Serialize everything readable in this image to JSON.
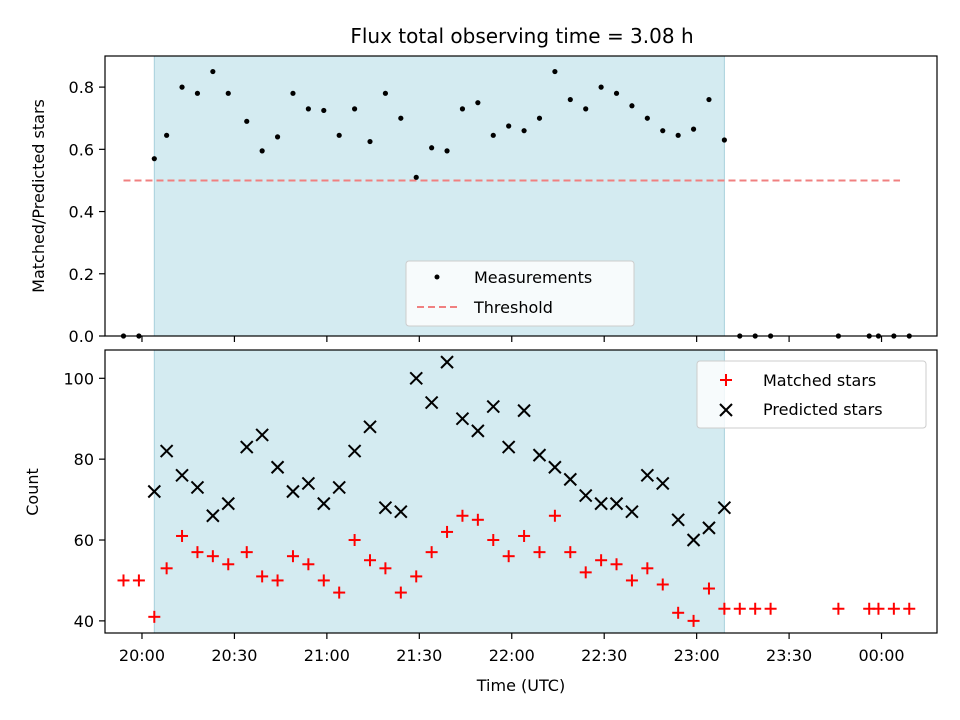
{
  "chart_data": [
    {
      "type": "scatter",
      "title": "Flux total observing time = 3.08 h",
      "xlabel": "",
      "ylabel": "Matched/Predicted stars",
      "ylim": [
        0,
        0.9
      ],
      "yticks": [
        "0.0",
        "0.2",
        "0.4",
        "0.6",
        "0.8"
      ],
      "ytick_values": [
        0,
        0.2,
        0.4,
        0.6,
        0.8
      ],
      "xlim": [
        "19:48",
        "00:18"
      ],
      "shaded_region": {
        "start": "20:04",
        "end": "23:09",
        "color": "#d4ebf1"
      },
      "threshold": {
        "name": "Threshold",
        "value": 0.5,
        "x_range": [
          "19:54",
          "00:06"
        ],
        "color": "#f08080"
      },
      "legend": {
        "placement": "lower center",
        "entries": [
          "Measurements",
          "Threshold"
        ]
      },
      "series": [
        {
          "name": "Measurements",
          "color": "#000000",
          "x": [
            "19:54",
            "19:59",
            "20:04",
            "20:08",
            "20:13",
            "20:18",
            "20:23",
            "20:28",
            "20:34",
            "20:39",
            "20:44",
            "20:49",
            "20:54",
            "20:59",
            "21:04",
            "21:09",
            "21:14",
            "21:19",
            "21:24",
            "21:29",
            "21:34",
            "21:39",
            "21:44",
            "21:49",
            "21:54",
            "21:59",
            "22:04",
            "22:09",
            "22:14",
            "22:19",
            "22:24",
            "22:29",
            "22:34",
            "22:39",
            "22:44",
            "22:49",
            "22:54",
            "22:59",
            "23:04",
            "23:09",
            "23:14",
            "23:19",
            "23:24",
            "23:46",
            "23:56",
            "23:59",
            "00:04",
            "00:09"
          ],
          "y": [
            0.0,
            0.0,
            0.57,
            0.645,
            0.8,
            0.78,
            0.85,
            0.78,
            0.69,
            0.595,
            0.64,
            0.78,
            0.73,
            0.725,
            0.645,
            0.73,
            0.625,
            0.78,
            0.7,
            0.51,
            0.605,
            0.595,
            0.73,
            0.75,
            0.645,
            0.675,
            0.66,
            0.7,
            0.85,
            0.76,
            0.73,
            0.8,
            0.78,
            0.74,
            0.7,
            0.66,
            0.645,
            0.665,
            0.76,
            0.63,
            0.0,
            0.0,
            0.0,
            0.0,
            0.0,
            0.0,
            0.0,
            0.0
          ]
        }
      ]
    },
    {
      "type": "scatter",
      "title": "",
      "xlabel": "Time (UTC)",
      "ylabel": "Count",
      "ylim": [
        37,
        107
      ],
      "yticks": [
        "40",
        "60",
        "80",
        "100"
      ],
      "ytick_values": [
        40,
        60,
        80,
        100
      ],
      "xlim": [
        "19:48",
        "00:18"
      ],
      "xticks": [
        "20:00",
        "20:30",
        "21:00",
        "21:30",
        "22:00",
        "22:30",
        "23:00",
        "23:30",
        "00:00"
      ],
      "xtick_minutes": [
        1200,
        1230,
        1260,
        1290,
        1320,
        1350,
        1380,
        1410,
        1440
      ],
      "shaded_region": {
        "start": "20:04",
        "end": "23:09",
        "color": "#d4ebf1"
      },
      "legend": {
        "placement": "upper right",
        "entries": [
          "Matched stars",
          "Predicted stars"
        ]
      },
      "series": [
        {
          "name": "Matched stars",
          "marker": "plus",
          "color": "#ff0000",
          "x": [
            "19:54",
            "19:59",
            "20:04",
            "20:08",
            "20:13",
            "20:18",
            "20:23",
            "20:28",
            "20:34",
            "20:39",
            "20:44",
            "20:49",
            "20:54",
            "20:59",
            "21:04",
            "21:09",
            "21:14",
            "21:19",
            "21:24",
            "21:29",
            "21:34",
            "21:39",
            "21:44",
            "21:49",
            "21:54",
            "21:59",
            "22:04",
            "22:09",
            "22:14",
            "22:19",
            "22:24",
            "22:29",
            "22:34",
            "22:39",
            "22:44",
            "22:49",
            "22:54",
            "22:59",
            "23:04",
            "23:09",
            "23:14",
            "23:19",
            "23:24",
            "23:46",
            "23:56",
            "23:59",
            "00:04",
            "00:09"
          ],
          "y": [
            50,
            50,
            41,
            53,
            61,
            57,
            56,
            54,
            57,
            51,
            50,
            56,
            54,
            50,
            47,
            60,
            55,
            53,
            47,
            51,
            57,
            62,
            66,
            65,
            60,
            56,
            61,
            57,
            66,
            57,
            52,
            55,
            54,
            50,
            53,
            49,
            42,
            40,
            48,
            43,
            43,
            43,
            43,
            43,
            43,
            43,
            43,
            43
          ]
        },
        {
          "name": "Predicted stars",
          "marker": "x",
          "color": "#000000",
          "x": [
            "20:04",
            "20:08",
            "20:13",
            "20:18",
            "20:23",
            "20:28",
            "20:34",
            "20:39",
            "20:44",
            "20:49",
            "20:54",
            "20:59",
            "21:04",
            "21:09",
            "21:14",
            "21:19",
            "21:24",
            "21:29",
            "21:34",
            "21:39",
            "21:44",
            "21:49",
            "21:54",
            "21:59",
            "22:04",
            "22:09",
            "22:14",
            "22:19",
            "22:24",
            "22:29",
            "22:34",
            "22:39",
            "22:44",
            "22:49",
            "22:54",
            "22:59",
            "23:04",
            "23:09"
          ],
          "y": [
            72,
            82,
            76,
            73,
            66,
            69,
            83,
            86,
            78,
            72,
            74,
            69,
            73,
            82,
            88,
            68,
            67,
            100,
            94,
            104,
            90,
            87,
            93,
            83,
            92,
            81,
            78,
            75,
            71,
            69,
            69,
            67,
            76,
            74,
            65,
            60,
            63,
            68
          ]
        }
      ]
    }
  ]
}
